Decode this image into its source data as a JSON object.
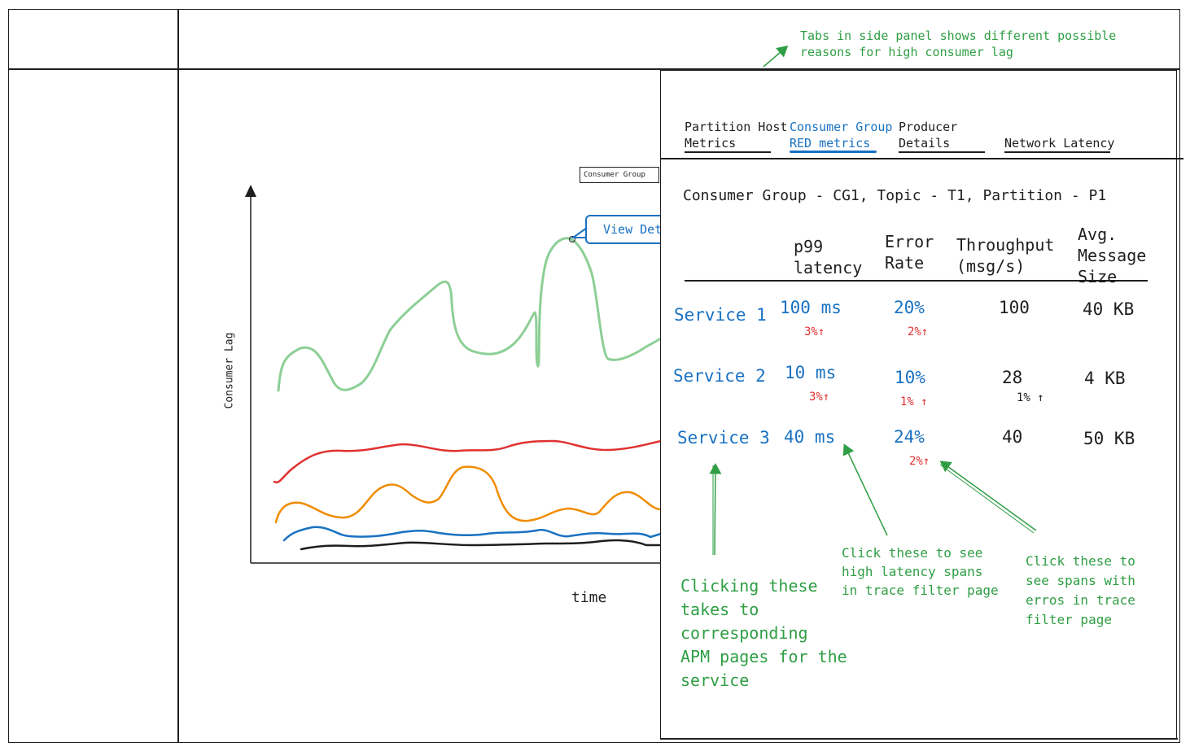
{
  "chart": {
    "ylabel": "Consumer Lag",
    "xlabel": "time",
    "tooltip_label": "Consumer Group",
    "view_details_label": "View Det"
  },
  "panel": {
    "tabs": [
      {
        "label": "Partition Host\nMetrics",
        "active": false
      },
      {
        "label": "Consumer Group\nRED metrics",
        "active": true
      },
      {
        "label": "Producer\nDetails",
        "active": false
      },
      {
        "label": "Network Latency",
        "active": false
      }
    ],
    "context": "Consumer Group - CG1, Topic - T1, Partition - P1",
    "columns": {
      "latency": "p99\nlatency",
      "error": "Error\nRate",
      "throughput": "Throughput\n(msg/s)",
      "size": "Avg.\nMessage\nSize"
    },
    "rows": [
      {
        "service": "Service 1",
        "latency": "100 ms",
        "latency_delta": "3%↑",
        "error": "20%",
        "error_delta": "2%↑",
        "throughput": "100",
        "throughput_delta": "",
        "size": "40 KB"
      },
      {
        "service": "Service 2",
        "latency": "10 ms",
        "latency_delta": "3%↑",
        "error": "10%",
        "error_delta": "1% ↑",
        "throughput": "28",
        "throughput_delta": "1% ↑",
        "size": "4 KB"
      },
      {
        "service": "Service 3",
        "latency": "40 ms",
        "latency_delta": "",
        "error": "24%",
        "error_delta": "2%↑",
        "throughput": "40",
        "throughput_delta": "",
        "size": "50 KB"
      }
    ]
  },
  "annotations": {
    "tabs_note": "Tabs in side panel shows different possible\nreasons for high consumer lag",
    "services_note": "Clicking these\ntakes to\ncorresponding\nAPM pages for the\nservice",
    "latency_note": "Click these to see\nhigh latency spans\nin trace filter page",
    "error_note": "Click these to\nsee spans with\nerros in trace\nfilter page"
  },
  "colors": {
    "accent_blue": "#1971c2",
    "annotation_green": "#2f9e44",
    "delta_red": "#e03131",
    "series_green": "#8ccf95",
    "series_red": "#e03131",
    "series_orange": "#f08c00",
    "series_blue": "#1971c2",
    "series_black": "#1e1e1e"
  }
}
